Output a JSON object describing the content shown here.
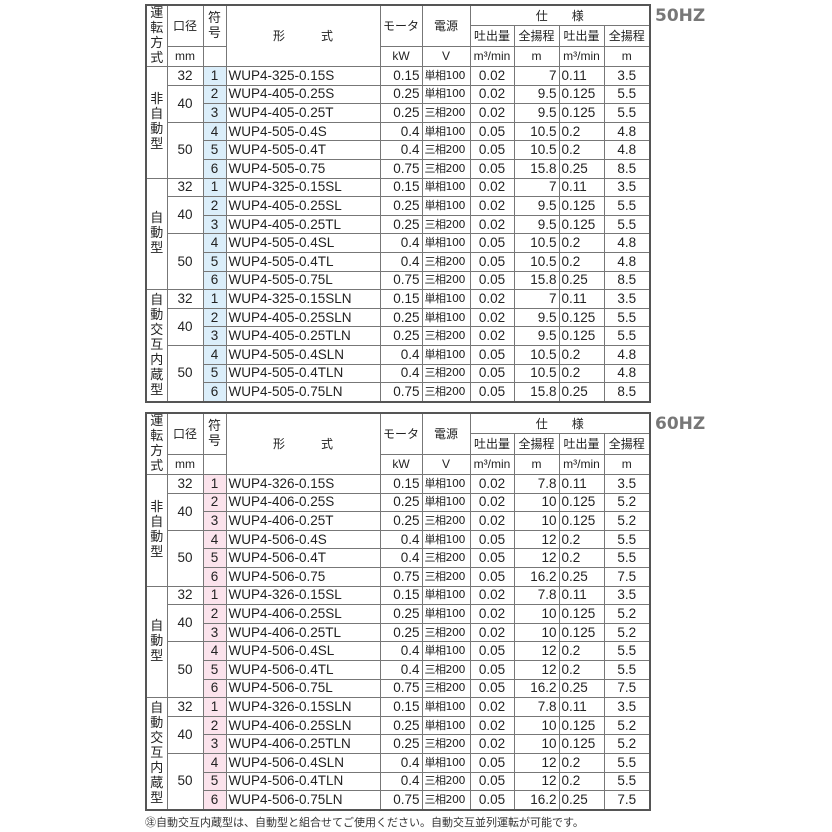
{
  "headers": {
    "mode": "運転方式",
    "bore": "口径",
    "bore_unit": "mm",
    "sym": "符号",
    "model": "形　　　式",
    "motor": "モータ",
    "motor_unit": "kW",
    "power": "電源",
    "power_unit": "V",
    "spec": "仕　　様",
    "q": "吐出量",
    "h": "全揚程",
    "q_unit": "m³/min",
    "h_unit": "m"
  },
  "note": "㊟自動交互内蔵型は、自動型と組合せてご使用ください。自動交互並列運転が可能です。",
  "tables": [
    {
      "hz": "50HZ",
      "modes": [
        "非自動型",
        "自動型",
        "自動交互内蔵型"
      ],
      "bores": [
        "32",
        "40",
        "50"
      ],
      "rows": [
        [
          "1",
          "WUP4-325-0.15S",
          "0.15",
          "単相100",
          "0.02",
          "7",
          "0.11",
          "3.5"
        ],
        [
          "2",
          "WUP4-405-0.25S",
          "0.25",
          "単相100",
          "0.02",
          "9.5",
          "0.125",
          "5.5"
        ],
        [
          "3",
          "WUP4-405-0.25T",
          "0.25",
          "三相200",
          "0.02",
          "9.5",
          "0.125",
          "5.5"
        ],
        [
          "4",
          "WUP4-505-0.4S",
          "0.4",
          "単相100",
          "0.05",
          "10.5",
          "0.2",
          "4.8"
        ],
        [
          "5",
          "WUP4-505-0.4T",
          "0.4",
          "三相200",
          "0.05",
          "10.5",
          "0.2",
          "4.8"
        ],
        [
          "6",
          "WUP4-505-0.75",
          "0.75",
          "三相200",
          "0.05",
          "15.8",
          "0.25",
          "8.5"
        ],
        [
          "1",
          "WUP4-325-0.15SL",
          "0.15",
          "単相100",
          "0.02",
          "7",
          "0.11",
          "3.5"
        ],
        [
          "2",
          "WUP4-405-0.25SL",
          "0.25",
          "単相100",
          "0.02",
          "9.5",
          "0.125",
          "5.5"
        ],
        [
          "3",
          "WUP4-405-0.25TL",
          "0.25",
          "三相200",
          "0.02",
          "9.5",
          "0.125",
          "5.5"
        ],
        [
          "4",
          "WUP4-505-0.4SL",
          "0.4",
          "単相100",
          "0.05",
          "10.5",
          "0.2",
          "4.8"
        ],
        [
          "5",
          "WUP4-505-0.4TL",
          "0.4",
          "三相200",
          "0.05",
          "10.5",
          "0.2",
          "4.8"
        ],
        [
          "6",
          "WUP4-505-0.75L",
          "0.75",
          "三相200",
          "0.05",
          "15.8",
          "0.25",
          "8.5"
        ],
        [
          "1",
          "WUP4-325-0.15SLN",
          "0.15",
          "単相100",
          "0.02",
          "7",
          "0.11",
          "3.5"
        ],
        [
          "2",
          "WUP4-405-0.25SLN",
          "0.25",
          "単相100",
          "0.02",
          "9.5",
          "0.125",
          "5.5"
        ],
        [
          "3",
          "WUP4-405-0.25TLN",
          "0.25",
          "三相200",
          "0.02",
          "9.5",
          "0.125",
          "5.5"
        ],
        [
          "4",
          "WUP4-505-0.4SLN",
          "0.4",
          "単相100",
          "0.05",
          "10.5",
          "0.2",
          "4.8"
        ],
        [
          "5",
          "WUP4-505-0.4TLN",
          "0.4",
          "三相200",
          "0.05",
          "10.5",
          "0.2",
          "4.8"
        ],
        [
          "6",
          "WUP4-505-0.75LN",
          "0.75",
          "三相200",
          "0.05",
          "15.8",
          "0.25",
          "8.5"
        ]
      ]
    },
    {
      "hz": "60HZ",
      "modes": [
        "非自動型",
        "自動型",
        "自動交互内蔵型"
      ],
      "bores": [
        "32",
        "40",
        "50"
      ],
      "rows": [
        [
          "1",
          "WUP4-326-0.15S",
          "0.15",
          "単相100",
          "0.02",
          "7.8",
          "0.11",
          "3.5"
        ],
        [
          "2",
          "WUP4-406-0.25S",
          "0.25",
          "単相100",
          "0.02",
          "10",
          "0.125",
          "5.2"
        ],
        [
          "3",
          "WUP4-406-0.25T",
          "0.25",
          "三相200",
          "0.02",
          "10",
          "0.125",
          "5.2"
        ],
        [
          "4",
          "WUP4-506-0.4S",
          "0.4",
          "単相100",
          "0.05",
          "12",
          "0.2",
          "5.5"
        ],
        [
          "5",
          "WUP4-506-0.4T",
          "0.4",
          "三相200",
          "0.05",
          "12",
          "0.2",
          "5.5"
        ],
        [
          "6",
          "WUP4-506-0.75",
          "0.75",
          "三相200",
          "0.05",
          "16.2",
          "0.25",
          "7.5"
        ],
        [
          "1",
          "WUP4-326-0.15SL",
          "0.15",
          "単相100",
          "0.02",
          "7.8",
          "0.11",
          "3.5"
        ],
        [
          "2",
          "WUP4-406-0.25SL",
          "0.25",
          "単相100",
          "0.02",
          "10",
          "0.125",
          "5.2"
        ],
        [
          "3",
          "WUP4-406-0.25TL",
          "0.25",
          "三相200",
          "0.02",
          "10",
          "0.125",
          "5.2"
        ],
        [
          "4",
          "WUP4-506-0.4SL",
          "0.4",
          "単相100",
          "0.05",
          "12",
          "0.2",
          "5.5"
        ],
        [
          "5",
          "WUP4-506-0.4TL",
          "0.4",
          "三相200",
          "0.05",
          "12",
          "0.2",
          "5.5"
        ],
        [
          "6",
          "WUP4-506-0.75L",
          "0.75",
          "三相200",
          "0.05",
          "16.2",
          "0.25",
          "7.5"
        ],
        [
          "1",
          "WUP4-326-0.15SLN",
          "0.15",
          "単相100",
          "0.02",
          "7.8",
          "0.11",
          "3.5"
        ],
        [
          "2",
          "WUP4-406-0.25SLN",
          "0.25",
          "単相100",
          "0.02",
          "10",
          "0.125",
          "5.2"
        ],
        [
          "3",
          "WUP4-406-0.25TLN",
          "0.25",
          "三相200",
          "0.02",
          "10",
          "0.125",
          "5.2"
        ],
        [
          "4",
          "WUP4-506-0.4SLN",
          "0.4",
          "単相100",
          "0.05",
          "12",
          "0.2",
          "5.5"
        ],
        [
          "5",
          "WUP4-506-0.4TLN",
          "0.4",
          "三相200",
          "0.05",
          "12",
          "0.2",
          "5.5"
        ],
        [
          "6",
          "WUP4-506-0.75LN",
          "0.75",
          "三相200",
          "0.05",
          "16.2",
          "0.25",
          "7.5"
        ]
      ]
    }
  ]
}
